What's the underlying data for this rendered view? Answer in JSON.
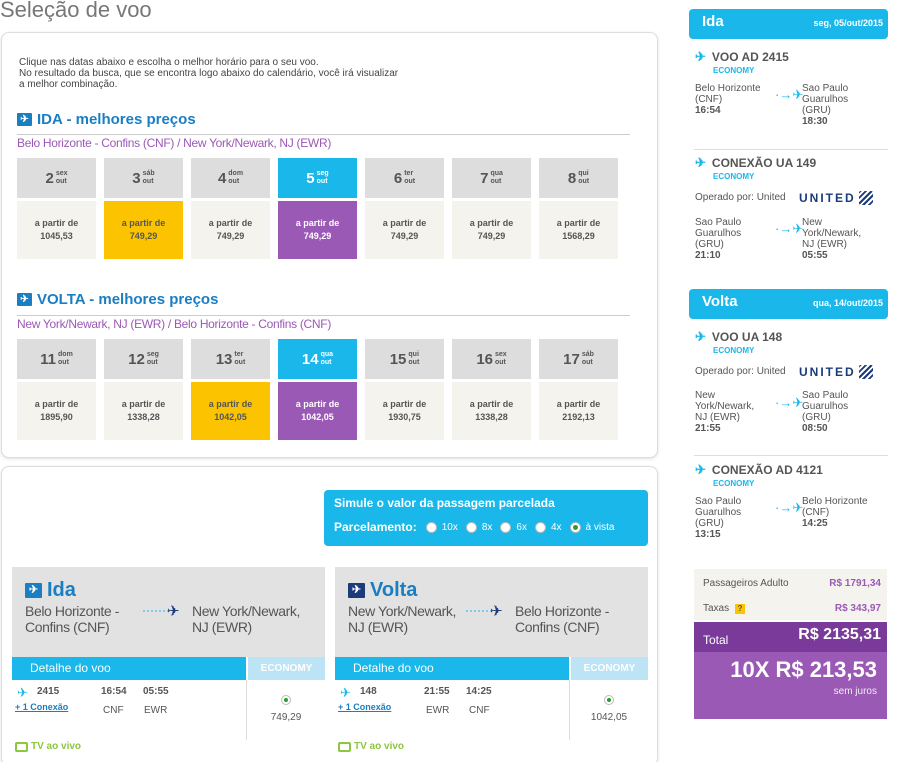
{
  "page_title": "Seleção de voo",
  "intro": {
    "line1": "Clique nas datas abaixo e escolha o melhor horário para o seu voo.",
    "line2": "No resultado da busca, que se encontra logo abaixo do calendário, você irá visualizar",
    "line3": "a melhor combinação."
  },
  "ida": {
    "heading": "IDA - melhores preços",
    "route": "Belo Horizonte - Confins (CNF) / New York/Newark, NJ (EWR)",
    "days": [
      {
        "num": "2",
        "wd": "sex",
        "m": "out",
        "label": "a partir de",
        "price": "1045,53",
        "state": "normal"
      },
      {
        "num": "3",
        "wd": "sáb",
        "m": "out",
        "label": "a partir de",
        "price": "749,29",
        "state": "best"
      },
      {
        "num": "4",
        "wd": "dom",
        "m": "out",
        "label": "a partir de",
        "price": "749,29",
        "state": "normal"
      },
      {
        "num": "5",
        "wd": "seg",
        "m": "out",
        "label": "a partir de",
        "price": "749,29",
        "state": "selected"
      },
      {
        "num": "6",
        "wd": "ter",
        "m": "out",
        "label": "a partir de",
        "price": "749,29",
        "state": "normal"
      },
      {
        "num": "7",
        "wd": "qua",
        "m": "out",
        "label": "a partir de",
        "price": "749,29",
        "state": "normal"
      },
      {
        "num": "8",
        "wd": "qui",
        "m": "out",
        "label": "a partir de",
        "price": "1568,29",
        "state": "normal"
      }
    ]
  },
  "volta": {
    "heading": "VOLTA - melhores preços",
    "route": "New York/Newark, NJ (EWR) / Belo Horizonte - Confins (CNF)",
    "days": [
      {
        "num": "11",
        "wd": "dom",
        "m": "out",
        "label": "a partir de",
        "price": "1895,90",
        "state": "normal"
      },
      {
        "num": "12",
        "wd": "seg",
        "m": "out",
        "label": "a partir de",
        "price": "1338,28",
        "state": "normal"
      },
      {
        "num": "13",
        "wd": "ter",
        "m": "out",
        "label": "a partir de",
        "price": "1042,05",
        "state": "best"
      },
      {
        "num": "14",
        "wd": "qua",
        "m": "out",
        "label": "a partir de",
        "price": "1042,05",
        "state": "selected"
      },
      {
        "num": "15",
        "wd": "qui",
        "m": "out",
        "label": "a partir de",
        "price": "1930,75",
        "state": "normal"
      },
      {
        "num": "16",
        "wd": "sex",
        "m": "out",
        "label": "a partir de",
        "price": "1338,28",
        "state": "normal"
      },
      {
        "num": "17",
        "wd": "sáb",
        "m": "out",
        "label": "a partir de",
        "price": "2192,13",
        "state": "normal"
      }
    ]
  },
  "simulator": {
    "title": "Simule o valor da passagem parcelada",
    "label": "Parcelamento:",
    "options": [
      "10x",
      "8x",
      "6x",
      "4x",
      "à vista"
    ],
    "selected": "à vista"
  },
  "cards": {
    "ida": {
      "title": "Ida",
      "from": "Belo Horizonte - Confins (CNF)",
      "to": "New York/Newark, NJ (EWR)",
      "detail_label": "Detalhe do voo",
      "class_label": "ECONOMY",
      "flight": "2415",
      "connection": "+ 1  Conexão",
      "dep_time": "16:54",
      "arr_time": "05:55",
      "dep_code": "CNF",
      "arr_code": "EWR",
      "price": "749,29",
      "tv": "TV ao vivo"
    },
    "volta": {
      "title": "Volta",
      "from": "New York/Newark, NJ (EWR)",
      "to": "Belo Horizonte - Confins (CNF)",
      "detail_label": "Detalhe do voo",
      "class_label": "ECONOMY",
      "flight": "148",
      "connection": "+ 1  Conexão",
      "dep_time": "21:55",
      "arr_time": "14:25",
      "dep_code": "EWR",
      "arr_code": "CNF",
      "price": "1042,05",
      "tv": "TV ao vivo"
    }
  },
  "summary": {
    "ida": {
      "label": "Ida",
      "date": "seg, 05/out/2015",
      "seg1": {
        "title": "VOO AD 2415",
        "class": "ECONOMY",
        "from_a": "Belo Horizonte",
        "from_b": "(CNF)",
        "from_t": "16:54",
        "to_a": "Sao Paulo",
        "to_b": "Guarulhos",
        "to_c": "(GRU)",
        "to_t": "18:30"
      },
      "seg2": {
        "title": "CONEXÃO UA 149",
        "class": "ECONOMY",
        "operated": "Operado por: United",
        "airline": "UNITED",
        "from_a": "Sao Paulo",
        "from_b": "Guarulhos",
        "from_c": "(GRU)",
        "from_t": "21:10",
        "to_a": "New",
        "to_b": "York/Newark,",
        "to_c": "NJ (EWR)",
        "to_t": "05:55"
      }
    },
    "volta": {
      "label": "Volta",
      "date": "qua, 14/out/2015",
      "seg1": {
        "title": "VOO UA 148",
        "class": "ECONOMY",
        "operated": "Operado por: United",
        "airline": "UNITED",
        "from_a": "New",
        "from_b": "York/Newark,",
        "from_c": "NJ (EWR)",
        "from_t": "21:55",
        "to_a": "Sao Paulo",
        "to_b": "Guarulhos",
        "to_c": "(GRU)",
        "to_t": "08:50"
      },
      "seg2": {
        "title": "CONEXÃO AD 4121",
        "class": "ECONOMY",
        "from_a": "Sao Paulo",
        "from_b": "Guarulhos",
        "from_c": "(GRU)",
        "from_t": "13:15",
        "to_a": "Belo Horizonte",
        "to_b": "(CNF)",
        "to_t": "14:25"
      }
    },
    "passengers_label": "Passageiros Adulto",
    "passengers_value": "R$ 1791,34",
    "taxes_label": "Taxas",
    "taxes_help": "?",
    "taxes_value": "R$ 343,97",
    "total_label": "Total",
    "total_value": "R$ 2135,31",
    "installments": "10X R$ 213,53",
    "interest": "sem juros"
  }
}
